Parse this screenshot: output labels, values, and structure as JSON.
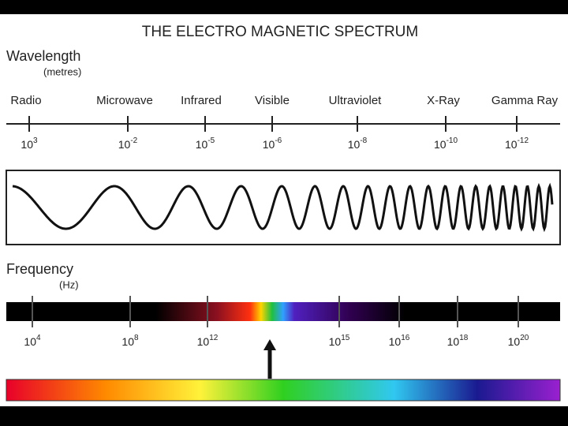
{
  "title": "THE ELECTRO MAGNETIC SPECTRUM",
  "wavelength": {
    "label": "Wavelength",
    "unit": "(metres)",
    "bands": [
      "Radio",
      "Microwave",
      "Infrared",
      "Visible",
      "Ultraviolet",
      "X-Ray",
      "Gamma Ray"
    ],
    "ticks": [
      {
        "base": "10",
        "exponent": "3"
      },
      {
        "base": "10",
        "exponent": "-2"
      },
      {
        "base": "10",
        "exponent": "-5"
      },
      {
        "base": "10",
        "exponent": "-6"
      },
      {
        "base": "10",
        "exponent": "-8"
      },
      {
        "base": "10",
        "exponent": "-10"
      },
      {
        "base": "10",
        "exponent": "-12"
      }
    ]
  },
  "frequency": {
    "label": "Frequency",
    "unit": "(Hz)",
    "ticks": [
      {
        "base": "10",
        "exponent": "4"
      },
      {
        "base": "10",
        "exponent": "8"
      },
      {
        "base": "10",
        "exponent": "12"
      },
      {
        "base": "10",
        "exponent": "15"
      },
      {
        "base": "10",
        "exponent": "16"
      },
      {
        "base": "10",
        "exponent": "18"
      },
      {
        "base": "10",
        "exponent": "20"
      }
    ]
  }
}
